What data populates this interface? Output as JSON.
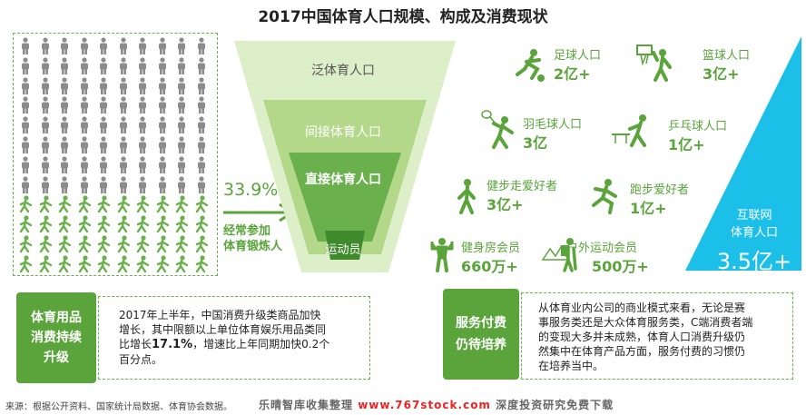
{
  "title": "2017中国体育人口规模、构成及消费现状",
  "people_grid": {
    "rows": 12,
    "cols": 10,
    "green_count": 40,
    "gray_color": "#8c8c8c",
    "green_color": "#6ab04c"
  },
  "percent": "33.9%",
  "percent_label_1": "经常参加",
  "percent_label_2": "体育锻炼人",
  "funnel": {
    "level1": "泛体育人口",
    "level2": "间接体育人口",
    "level3": "直接体育人口",
    "level4": "运动员"
  },
  "internet": {
    "label_1": "互联网",
    "label_2": "体育人口",
    "value": "3.5亿+"
  },
  "sports": [
    {
      "name": "足球人口",
      "value": "2亿+",
      "icon": "football-player-icon"
    },
    {
      "name": "篮球人口",
      "value": "3亿+",
      "icon": "basketball-player-icon"
    },
    {
      "name": "羽毛球人口",
      "value": "3亿",
      "icon": "badminton-player-icon"
    },
    {
      "name": "乒乓球人口",
      "value": "1亿+",
      "icon": "pingpong-player-icon"
    },
    {
      "name": "健步走爱好者",
      "value": "3亿+",
      "icon": "walker-icon"
    },
    {
      "name": "跑步爱好者",
      "value": "1亿+",
      "icon": "runner-icon"
    },
    {
      "name": "健身房会员",
      "value": "660万+",
      "icon": "bodybuilder-icon"
    },
    {
      "name": "户外运动会员",
      "value": "500万+",
      "icon": "hiker-icon"
    }
  ],
  "left_block": {
    "label_1": "体育用品",
    "label_2": "消费持续",
    "label_3": "升级",
    "text_1": "2017年上半年，中国消费升级类商品加快",
    "text_2": "增长，其中限额以上单位体育娱乐用品类同",
    "text_3a": "比增长",
    "text_3b": "17.1%",
    "text_3c": "，增速比上年同期加快0.2个",
    "text_4": "百分点。"
  },
  "right_block": {
    "label_1": "服务付费",
    "label_2": "仍待培养",
    "text_1": "从体育业内公司的商业模式来看，无论是赛",
    "text_2": "事服务类还是大众体育服务类，C端消费者端",
    "text_3": "的变现大多并未成熟，体育人口消费升级仍",
    "text_4": "然集中在体育产品方面，服务付费的习惯仍",
    "text_5": "在培养当中。"
  },
  "source": "来源：根据公开资料、国家统计局数据、体育协会数据。",
  "watermark_1": "乐晴智库收集整理",
  "watermark_url": "www.767stock.com",
  "watermark_2": "深度投资研究免费下载",
  "colors": {
    "green": "#5aa43b",
    "light_green": "#8cc04b",
    "cyan": "#1bbfe8",
    "funnel_outer": "#d6ecc0"
  }
}
